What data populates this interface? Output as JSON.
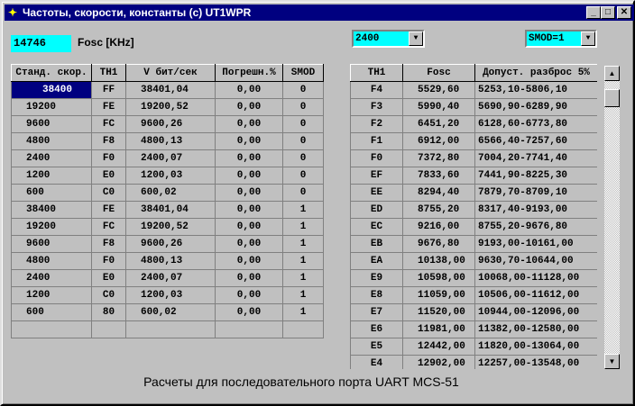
{
  "window": {
    "title": "Частоты, скорости, константы (c) UT1WPR",
    "minimize": "_",
    "maximize": "□",
    "close": "✕"
  },
  "fosc": {
    "value": "14746",
    "label": "Fosc [KHz]"
  },
  "baud_select": {
    "value": "2400"
  },
  "smod_select": {
    "value": "SMOD=1"
  },
  "left_table": {
    "headers": [
      "Станд. скор.",
      "TH1",
      "V бит/сек",
      "Погрешн.%",
      "SMOD"
    ],
    "rows": [
      [
        "38400",
        "FF",
        "38401,04",
        "0,00",
        "0"
      ],
      [
        "19200",
        "FE",
        "19200,52",
        "0,00",
        "0"
      ],
      [
        "9600",
        "FC",
        "9600,26",
        "0,00",
        "0"
      ],
      [
        "4800",
        "F8",
        "4800,13",
        "0,00",
        "0"
      ],
      [
        "2400",
        "F0",
        "2400,07",
        "0,00",
        "0"
      ],
      [
        "1200",
        "E0",
        "1200,03",
        "0,00",
        "0"
      ],
      [
        "600",
        "C0",
        "600,02",
        "0,00",
        "0"
      ],
      [
        "38400",
        "FE",
        "38401,04",
        "0,00",
        "1"
      ],
      [
        "19200",
        "FC",
        "19200,52",
        "0,00",
        "1"
      ],
      [
        "9600",
        "F8",
        "9600,26",
        "0,00",
        "1"
      ],
      [
        "4800",
        "F0",
        "4800,13",
        "0,00",
        "1"
      ],
      [
        "2400",
        "E0",
        "2400,07",
        "0,00",
        "1"
      ],
      [
        "1200",
        "C0",
        "1200,03",
        "0,00",
        "1"
      ],
      [
        "600",
        "80",
        "600,02",
        "0,00",
        "1"
      ],
      [
        "",
        "",
        "",
        "",
        ""
      ]
    ]
  },
  "right_table": {
    "headers": [
      "TH1",
      "Fosc",
      "Допуст. разброс 5%"
    ],
    "rows": [
      [
        "F4",
        "5529,60",
        "5253,10-5806,10"
      ],
      [
        "F3",
        "5990,40",
        "5690,90-6289,90"
      ],
      [
        "F2",
        "6451,20",
        "6128,60-6773,80"
      ],
      [
        "F1",
        "6912,00",
        "6566,40-7257,60"
      ],
      [
        "F0",
        "7372,80",
        "7004,20-7741,40"
      ],
      [
        "EF",
        "7833,60",
        "7441,90-8225,30"
      ],
      [
        "EE",
        "8294,40",
        "7879,70-8709,10"
      ],
      [
        "ED",
        "8755,20",
        "8317,40-9193,00"
      ],
      [
        "EC",
        "9216,00",
        "8755,20-9676,80"
      ],
      [
        "EB",
        "9676,80",
        "9193,00-10161,00"
      ],
      [
        "EA",
        "10138,00",
        "9630,70-10644,00"
      ],
      [
        "E9",
        "10598,00",
        "10068,00-11128,00"
      ],
      [
        "E8",
        "11059,00",
        "10506,00-11612,00"
      ],
      [
        "E7",
        "11520,00",
        "10944,00-12096,00"
      ],
      [
        "E6",
        "11981,00",
        "11382,00-12580,00"
      ],
      [
        "E5",
        "12442,00",
        "11820,00-13064,00"
      ],
      [
        "E4",
        "12902,00",
        "12257,00-13548,00"
      ]
    ]
  },
  "caption": "Расчеты для последовательного порта UART MCS-51"
}
